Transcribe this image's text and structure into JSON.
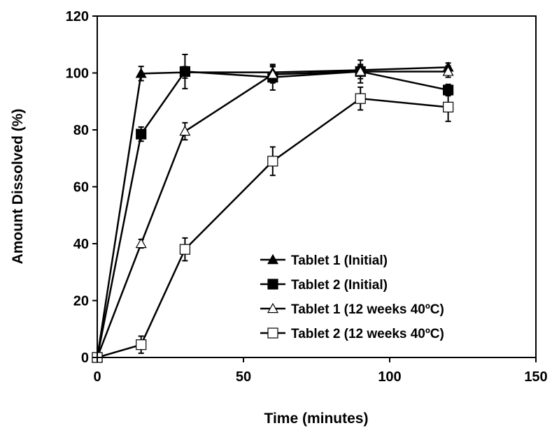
{
  "chart_data": {
    "type": "line",
    "title": "",
    "xlabel": "Time (minutes)",
    "ylabel": "Amount Dissolved (%)",
    "xlim": [
      0,
      150
    ],
    "ylim": [
      0,
      120
    ],
    "xticks": [
      0,
      50,
      100,
      150
    ],
    "yticks": [
      0,
      20,
      40,
      60,
      80,
      100,
      120
    ],
    "xtick_labels": [
      "0",
      "50",
      "100",
      "150"
    ],
    "ytick_labels": [
      "0",
      "20",
      "40",
      "60",
      "80",
      "100",
      "120"
    ],
    "grid": false,
    "legend_position": "bottom-right",
    "series": [
      {
        "name": "Tablet 1 (Initial)",
        "marker": "triangle-filled",
        "x": [
          0,
          15,
          30,
          60,
          90,
          120
        ],
        "y": [
          0,
          99.8,
          100.2,
          100.2,
          101.0,
          102.0
        ],
        "err": [
          0,
          2.5,
          2.0,
          2.0,
          1.5,
          1.5
        ]
      },
      {
        "name": "Tablet 2 (Initial)",
        "marker": "square-filled",
        "x": [
          0,
          15,
          30,
          60,
          90,
          120
        ],
        "y": [
          0,
          78.5,
          100.5,
          98.5,
          100.5,
          94.0
        ],
        "err": [
          0,
          2.5,
          6.0,
          4.5,
          4.0,
          2.0
        ]
      },
      {
        "name": "Tablet 1 (12 weeks 40ºC)",
        "marker": "triangle-open",
        "x": [
          0,
          15,
          30,
          60,
          90,
          120
        ],
        "y": [
          0,
          40.0,
          79.5,
          99.5,
          100.5,
          100.5
        ],
        "err": [
          0,
          1.5,
          3.0,
          3.0,
          2.5,
          2.0
        ]
      },
      {
        "name": "Tablet 2 (12 weeks 40ºC)",
        "marker": "square-open",
        "x": [
          0,
          15,
          30,
          60,
          90,
          120
        ],
        "y": [
          0,
          4.5,
          38.0,
          69.0,
          91.0,
          88.0
        ],
        "err": [
          0,
          3.0,
          4.0,
          5.0,
          4.0,
          5.0
        ]
      }
    ]
  }
}
